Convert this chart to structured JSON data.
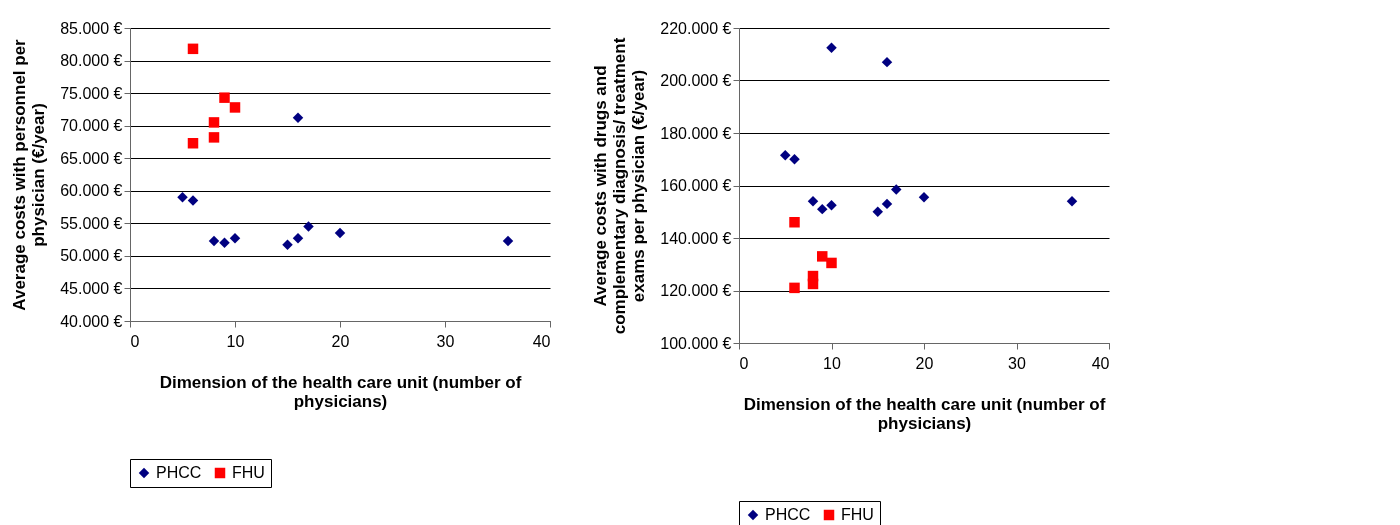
{
  "chart_data": [
    {
      "type": "scatter",
      "xlabel": "Dimension of the health care unit (number of physicians)",
      "ylabel": "Average costs with personnel per physician (€/year)",
      "xlim": [
        0,
        40
      ],
      "xticks": [
        0,
        10,
        20,
        30,
        40
      ],
      "ylim": [
        40000,
        85000
      ],
      "yticks": [
        {
          "value": 40000,
          "label": "40.000 €"
        },
        {
          "value": 45000,
          "label": "45.000 €"
        },
        {
          "value": 50000,
          "label": "50.000 €"
        },
        {
          "value": 55000,
          "label": "55.000 €"
        },
        {
          "value": 60000,
          "label": "60.000 €"
        },
        {
          "value": 65000,
          "label": "65.000 €"
        },
        {
          "value": 70000,
          "label": "70.000 €"
        },
        {
          "value": 75000,
          "label": "75.000 €"
        },
        {
          "value": 80000,
          "label": "80.000 €"
        },
        {
          "value": 85000,
          "label": "85.000 €"
        }
      ],
      "grid": "y",
      "legend": "bottom",
      "series": [
        {
          "name": "PHCC",
          "color": "#000080",
          "marker": "diamond",
          "x": [
            5,
            6,
            8,
            9,
            10,
            15,
            16,
            16,
            17,
            20,
            36
          ],
          "values": [
            59000,
            58500,
            52300,
            52000,
            52700,
            51700,
            52700,
            71200,
            54500,
            53500,
            52300
          ]
        },
        {
          "name": "FHU",
          "color": "#ff0000",
          "marker": "square",
          "x": [
            6,
            6,
            8,
            8,
            9,
            10
          ],
          "values": [
            81800,
            67300,
            70500,
            68200,
            74300,
            72800
          ]
        }
      ]
    },
    {
      "type": "scatter",
      "xlabel": "Dimension of the health care unit (number of physicians)",
      "ylabel": "Average costs with drugs and complementary diagnosis/ treatment exams per physician (€/year)",
      "xlim": [
        0,
        40
      ],
      "xticks": [
        0,
        10,
        20,
        30,
        40
      ],
      "ylim": [
        100000,
        220000
      ],
      "yticks": [
        {
          "value": 100000,
          "label": "100.000 €"
        },
        {
          "value": 120000,
          "label": "120.000 €"
        },
        {
          "value": 140000,
          "label": "140.000 €"
        },
        {
          "value": 160000,
          "label": "160.000 €"
        },
        {
          "value": 180000,
          "label": "180.000 €"
        },
        {
          "value": 200000,
          "label": "200.000 €"
        },
        {
          "value": 220000,
          "label": "220.000 €"
        }
      ],
      "grid": "y",
      "legend": "bottom",
      "series": [
        {
          "name": "PHCC",
          "color": "#000080",
          "marker": "diamond",
          "x": [
            5,
            6,
            8,
            9,
            10,
            10,
            15,
            16,
            16,
            17,
            20,
            36
          ],
          "values": [
            171500,
            170000,
            154000,
            151000,
            152500,
            212500,
            150000,
            153000,
            207000,
            158500,
            155500,
            154000
          ]
        },
        {
          "name": "FHU",
          "color": "#ff0000",
          "marker": "square",
          "x": [
            6,
            6,
            8,
            8,
            9,
            10
          ],
          "values": [
            146000,
            121000,
            125500,
            122500,
            133000,
            130500
          ]
        }
      ]
    }
  ]
}
